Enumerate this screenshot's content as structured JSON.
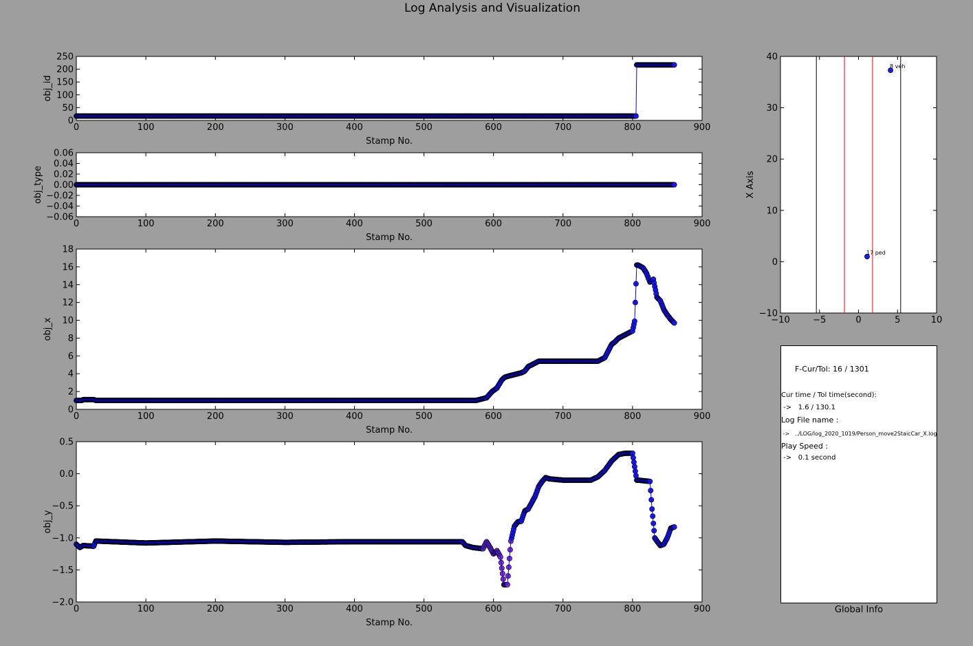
{
  "figure_title": "Log Analysis and Visualization",
  "chart_data": [
    {
      "type": "line",
      "id": "obj_id",
      "xlabel": "Stamp No.",
      "ylabel": "obj_id",
      "xlim": [
        0,
        900
      ],
      "ylim": [
        0,
        250
      ],
      "xticks": [
        0,
        100,
        200,
        300,
        400,
        500,
        600,
        700,
        800,
        900
      ],
      "yticks": [
        0,
        50,
        100,
        150,
        200,
        250
      ],
      "series": [
        {
          "x": [
            0,
            804,
            805,
            806,
            860
          ],
          "y": [
            17,
            17,
            17,
            217,
            217
          ]
        }
      ]
    },
    {
      "type": "line",
      "id": "obj_type",
      "xlabel": "Stamp No.",
      "ylabel": "obj_type",
      "xlim": [
        0,
        900
      ],
      "ylim": [
        -0.06,
        0.06
      ],
      "xticks": [
        0,
        100,
        200,
        300,
        400,
        500,
        600,
        700,
        800,
        900
      ],
      "yticks": [
        -0.06,
        -0.04,
        -0.02,
        0.0,
        0.02,
        0.04,
        0.06
      ],
      "ytick_labels": [
        "−0.06",
        "−0.04",
        "−0.02",
        "0.00",
        "0.02",
        "0.04",
        "0.06"
      ],
      "series": [
        {
          "x": [
            0,
            860
          ],
          "y": [
            0,
            0
          ]
        }
      ]
    },
    {
      "type": "line",
      "id": "obj_x",
      "xlabel": "Stamp No.",
      "ylabel": "obj_x",
      "xlim": [
        0,
        900
      ],
      "ylim": [
        0,
        18
      ],
      "xticks": [
        0,
        100,
        200,
        300,
        400,
        500,
        600,
        700,
        800,
        900
      ],
      "yticks": [
        0,
        2,
        4,
        6,
        8,
        10,
        12,
        14,
        16,
        18
      ],
      "series": [
        {
          "x": [
            0,
            8,
            10,
            25,
            28,
            560,
            575,
            590,
            598,
            605,
            612,
            616,
            620,
            630,
            640,
            645,
            650,
            660,
            665,
            700,
            750,
            760,
            770,
            775,
            780,
            790,
            800,
            803,
            806,
            808,
            815,
            820,
            825,
            830,
            835,
            840,
            845,
            850,
            855,
            860
          ],
          "y": [
            1.0,
            1.0,
            1.1,
            1.1,
            1.0,
            1.0,
            1.0,
            1.3,
            2.0,
            2.4,
            3.3,
            3.6,
            3.7,
            3.9,
            4.1,
            4.3,
            4.8,
            5.2,
            5.4,
            5.4,
            5.4,
            5.8,
            7.3,
            7.6,
            8.0,
            8.4,
            8.8,
            9.9,
            16.2,
            16.2,
            15.9,
            15.3,
            14.3,
            14.6,
            12.6,
            12.2,
            11.2,
            10.6,
            10.1,
            9.7
          ]
        }
      ]
    },
    {
      "type": "line",
      "id": "obj_y",
      "xlabel": "Stamp No.",
      "ylabel": "obj_y",
      "xlim": [
        0,
        900
      ],
      "ylim": [
        -2.0,
        0.5
      ],
      "xticks": [
        0,
        100,
        200,
        300,
        400,
        500,
        600,
        700,
        800,
        900
      ],
      "yticks": [
        -2.0,
        -1.5,
        -1.0,
        -0.5,
        0.0,
        0.5
      ],
      "ytick_labels": [
        "−2.0",
        "−1.5",
        "−1.0",
        "−0.5",
        "0.0",
        "0.5"
      ],
      "series": [
        {
          "x": [
            0,
            5,
            10,
            25,
            28,
            100,
            200,
            300,
            400,
            500,
            555,
            560,
            570,
            585,
            590,
            595,
            600,
            605,
            610,
            615,
            620,
            625,
            630,
            635,
            640,
            645,
            650,
            660,
            665,
            670,
            675,
            680,
            700,
            740,
            750,
            760,
            770,
            780,
            790,
            800,
            806,
            808,
            825,
            828,
            832,
            835,
            840,
            845,
            850,
            855,
            860
          ],
          "y": [
            -1.1,
            -1.15,
            -1.12,
            -1.13,
            -1.05,
            -1.08,
            -1.05,
            -1.07,
            -1.06,
            -1.06,
            -1.06,
            -1.12,
            -1.15,
            -1.17,
            -1.06,
            -1.15,
            -1.25,
            -1.2,
            -1.3,
            -1.73,
            -1.73,
            -1.05,
            -0.82,
            -0.75,
            -0.74,
            -0.58,
            -0.55,
            -0.35,
            -0.2,
            -0.12,
            -0.06,
            -0.08,
            -0.1,
            -0.1,
            -0.05,
            0.05,
            0.2,
            0.3,
            0.32,
            0.32,
            -0.1,
            -0.1,
            -0.12,
            -0.55,
            -1.0,
            -1.05,
            -1.12,
            -1.1,
            -1.0,
            -0.85,
            -0.83
          ]
        }
      ]
    },
    {
      "type": "scatter",
      "id": "x_axis_view",
      "xlabel": "",
      "ylabel": "X Axis",
      "xlim": [
        -10,
        10
      ],
      "ylim": [
        -10,
        40
      ],
      "xticks": [
        -10,
        -5,
        0,
        5,
        10
      ],
      "xtick_labels": [
        "−10",
        "−5",
        "0",
        "5",
        "10"
      ],
      "yticks": [
        -10,
        0,
        10,
        20,
        30,
        40
      ],
      "ytick_labels": [
        "−10",
        "0",
        "10",
        "20",
        "30",
        "40"
      ],
      "vlines": [
        {
          "x": -5.4,
          "color": "#000000"
        },
        {
          "x": -1.8,
          "color": "#ff0000"
        },
        {
          "x": 1.8,
          "color": "#ff0000"
        },
        {
          "x": 5.4,
          "color": "#000000"
        }
      ],
      "points": [
        {
          "x": 4.1,
          "y": 37.3,
          "label": "8 veh"
        },
        {
          "x": 1.1,
          "y": 1.0,
          "label": "17 ped"
        }
      ]
    }
  ],
  "global_info": {
    "xlabel": "Global Info",
    "frame_text": "F-Cur/Tol: 16 / 1301",
    "time_header": "Cur time / Tol time(second):",
    "time_value": " ->   1.6 / 130.1",
    "log_header": "Log File name :",
    "log_value": " ->   ../LOG/log_2020_1019/Person_move2StaicCar_X.log",
    "speed_header": "Play Speed :",
    "speed_value": " ->   0.1 second"
  },
  "colors": {
    "background": "#9e9e9e",
    "line": "#0000ff",
    "marker": "#1a1aff",
    "marker_edge": "#000000",
    "marker_alt": "#8a2be2",
    "lane_red": "#ff0000",
    "progress_star": "#cc0000"
  }
}
